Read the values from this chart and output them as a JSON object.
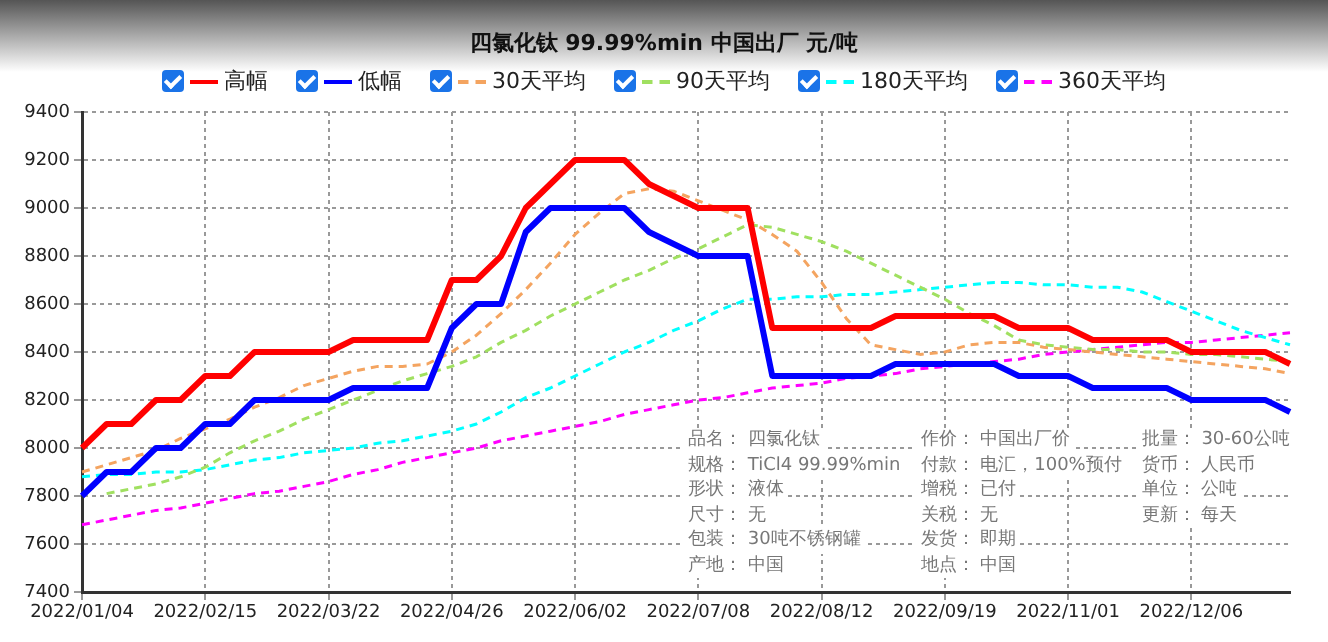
{
  "chart_data": {
    "type": "line",
    "title": "四氯化钛 99.99%min 中国出厂 元/吨",
    "categories": [
      "2022/01/04",
      null,
      null,
      null,
      null,
      "2022/02/15",
      null,
      null,
      null,
      null,
      "2022/03/22",
      null,
      null,
      null,
      null,
      "2022/04/26",
      null,
      null,
      null,
      null,
      "2022/06/02",
      null,
      null,
      null,
      null,
      "2022/07/08",
      null,
      null,
      null,
      null,
      "2022/08/12",
      null,
      null,
      null,
      null,
      "2022/09/19",
      null,
      null,
      null,
      null,
      "2022/11/01",
      null,
      null,
      null,
      null,
      "2022/12/06",
      null,
      null,
      null,
      null
    ],
    "ylim": [
      7400,
      9400
    ],
    "yticks": [
      7400,
      7600,
      7800,
      8000,
      8200,
      8400,
      8600,
      8800,
      9000,
      9200,
      9400
    ],
    "grid": true,
    "legend": "top",
    "marker": "none",
    "series": [
      {
        "name": "高幅",
        "color": "#ff0000",
        "line_style": "solid",
        "values": [
          8000,
          8100,
          8100,
          8200,
          8200,
          8300,
          8300,
          8400,
          8400,
          8400,
          8400,
          8450,
          8450,
          8450,
          8450,
          8700,
          8700,
          8800,
          9000,
          9100,
          9200,
          9200,
          9200,
          9100,
          9050,
          9000,
          9000,
          9000,
          8500,
          8500,
          8500,
          8500,
          8500,
          8550,
          8550,
          8550,
          8550,
          8550,
          8500,
          8500,
          8500,
          8450,
          8450,
          8450,
          8450,
          8400,
          8400,
          8400,
          8400,
          8350
        ]
      },
      {
        "name": "低幅",
        "color": "#0000ff",
        "line_style": "solid",
        "values": [
          7800,
          7900,
          7900,
          8000,
          8000,
          8100,
          8100,
          8200,
          8200,
          8200,
          8200,
          8250,
          8250,
          8250,
          8250,
          8500,
          8600,
          8600,
          8900,
          9000,
          9000,
          9000,
          9000,
          8900,
          8850,
          8800,
          8800,
          8800,
          8300,
          8300,
          8300,
          8300,
          8300,
          8350,
          8350,
          8350,
          8350,
          8350,
          8300,
          8300,
          8300,
          8250,
          8250,
          8250,
          8250,
          8200,
          8200,
          8200,
          8200,
          8150
        ]
      },
      {
        "name": "30天平均",
        "color": "#f4a460",
        "line_style": "dashed",
        "values": [
          7900,
          7930,
          7960,
          7990,
          8040,
          8080,
          8120,
          8170,
          8210,
          8260,
          8290,
          8320,
          8340,
          8340,
          8350,
          8400,
          8470,
          8560,
          8660,
          8770,
          8890,
          8980,
          9060,
          9080,
          9070,
          9030,
          8990,
          8950,
          8890,
          8820,
          8690,
          8540,
          8430,
          8410,
          8390,
          8400,
          8430,
          8440,
          8440,
          8420,
          8410,
          8400,
          8390,
          8380,
          8370,
          8360,
          8350,
          8340,
          8330,
          8310
        ]
      },
      {
        "name": "90天平均",
        "color": "#a0e060",
        "line_style": "dashed",
        "values": [
          null,
          7810,
          7830,
          7850,
          7880,
          7920,
          7980,
          8030,
          8070,
          8120,
          8160,
          8200,
          8240,
          8280,
          8310,
          8340,
          8380,
          8440,
          8490,
          8550,
          8600,
          8650,
          8700,
          8740,
          8790,
          8830,
          8880,
          8930,
          8920,
          8890,
          8860,
          8820,
          8770,
          8720,
          8670,
          8620,
          8560,
          8510,
          8450,
          8430,
          8420,
          8410,
          8410,
          8400,
          8400,
          8390,
          8390,
          8380,
          8370,
          8360
        ]
      },
      {
        "name": "180天平均",
        "color": "#00ffff",
        "line_style": "dashed",
        "values": [
          7880,
          7890,
          7890,
          7900,
          7900,
          7910,
          7930,
          7950,
          7960,
          7980,
          7990,
          8000,
          8020,
          8030,
          8050,
          8070,
          8100,
          8150,
          8210,
          8250,
          8300,
          8350,
          8400,
          8440,
          8490,
          8530,
          8580,
          8620,
          8620,
          8630,
          8630,
          8640,
          8640,
          8650,
          8660,
          8670,
          8680,
          8690,
          8690,
          8680,
          8680,
          8670,
          8670,
          8650,
          8610,
          8570,
          8530,
          8490,
          8460,
          8430
        ]
      },
      {
        "name": "360天平均",
        "color": "#ff00ff",
        "line_style": "dashed",
        "values": [
          7680,
          7700,
          7720,
          7740,
          7750,
          7770,
          7790,
          7810,
          7820,
          7840,
          7860,
          7890,
          7910,
          7940,
          7960,
          7980,
          8000,
          8030,
          8050,
          8070,
          8090,
          8110,
          8140,
          8160,
          8180,
          8200,
          8210,
          8230,
          8250,
          8260,
          8270,
          8290,
          8300,
          8310,
          8330,
          8340,
          8350,
          8360,
          8370,
          8390,
          8400,
          8410,
          8420,
          8430,
          8440,
          8440,
          8450,
          8460,
          8470,
          8480
        ]
      }
    ],
    "annotations": [
      "品名： 四氯化钛",
      "规格： TiCl4 99.99%min",
      "形状： 液体",
      "尺寸： 无",
      "包装： 30吨不锈钢罐",
      "产地： 中国",
      "作价： 中国出厂价",
      "付款： 电汇，100%预付",
      "增税： 已付",
      "关税： 无",
      "发货： 即期",
      "地点： 中国",
      "批量： 30-60公吨",
      "货币： 人民币",
      "单位： 公吨",
      "更新： 每天"
    ]
  }
}
